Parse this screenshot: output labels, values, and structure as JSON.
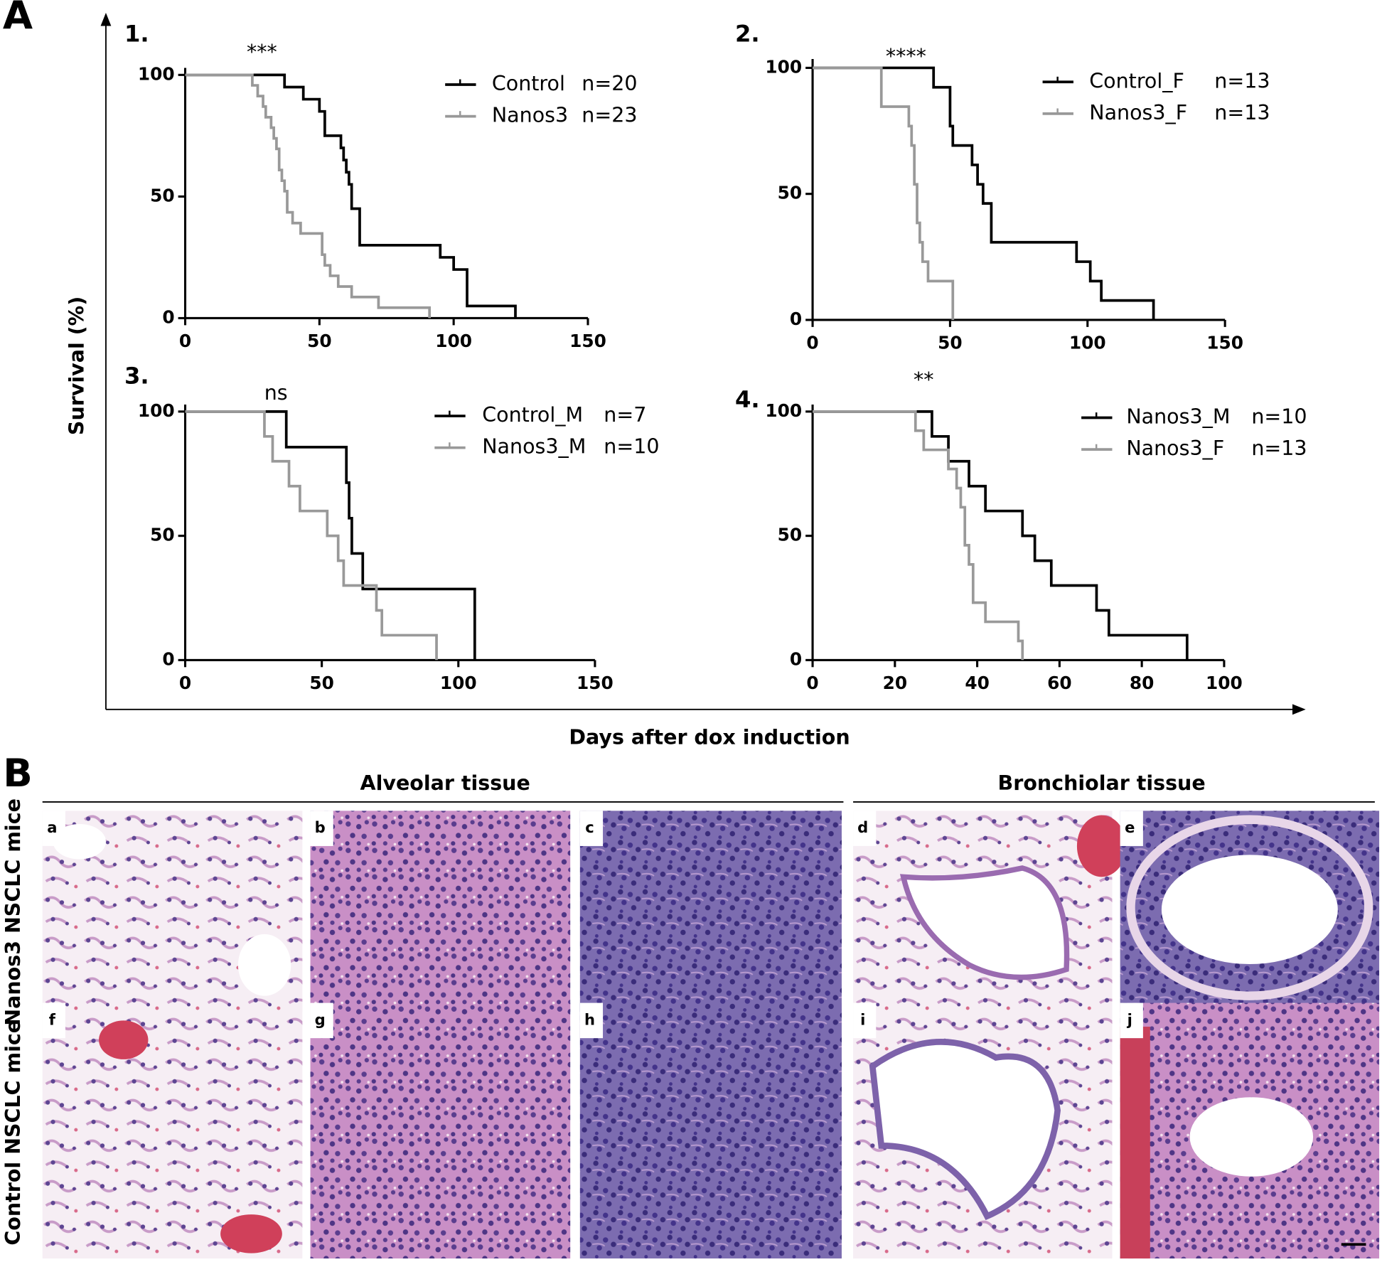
{
  "figure": {
    "panel_a": "A",
    "panel_b": "B",
    "y_label": "Survival (%)",
    "x_label": "Days after dox induction",
    "tissue_headers": [
      "Alveolar tissue",
      "Bronchiolar tissue"
    ],
    "row_labels": [
      "Nanos3 NSCLC mice",
      "Control NSCLC mice"
    ],
    "image_labels": [
      "a",
      "b",
      "c",
      "d",
      "e",
      "f",
      "g",
      "h",
      "i",
      "j"
    ]
  },
  "chart_data": [
    {
      "type": "step",
      "title": "1.",
      "annotation": "***",
      "xlim": [
        0,
        150
      ],
      "xticks": [
        0,
        50,
        100,
        150
      ],
      "ylim": [
        0,
        100
      ],
      "yticks": [
        0,
        50,
        100
      ],
      "series": [
        {
          "name": "Control",
          "n_label": "n=20",
          "color": "#000000",
          "x": [
            0,
            37,
            44,
            50,
            52,
            58,
            59,
            60,
            61,
            62,
            65,
            95,
            100,
            105,
            123
          ],
          "values": [
            100,
            95,
            90,
            85,
            75,
            70,
            65,
            60,
            55,
            45,
            30,
            25,
            20,
            5,
            0
          ]
        },
        {
          "name": "Nanos3",
          "n_label": "n=23",
          "color": "#999999",
          "x": [
            0,
            25,
            27,
            29,
            30,
            32,
            33,
            34,
            35,
            36,
            37,
            38,
            40,
            43,
            51,
            52,
            54,
            57,
            62,
            72,
            91
          ],
          "values": [
            100,
            95.7,
            91.3,
            87,
            82.6,
            78.3,
            73.9,
            69.6,
            60.9,
            56.5,
            52.2,
            43.5,
            39.1,
            34.8,
            26.1,
            21.7,
            17.4,
            13,
            8.7,
            4.3,
            0
          ]
        }
      ]
    },
    {
      "type": "step",
      "title": "2.",
      "annotation": "****",
      "xlim": [
        0,
        150
      ],
      "xticks": [
        0,
        50,
        100,
        150
      ],
      "ylim": [
        0,
        100
      ],
      "yticks": [
        0,
        50,
        100
      ],
      "series": [
        {
          "name": "Control_F",
          "n_label": "n=13",
          "color": "#000000",
          "x": [
            0,
            44,
            50,
            51,
            58,
            60,
            62,
            65,
            96,
            101,
            105,
            124
          ],
          "values": [
            100,
            92.3,
            76.9,
            69.2,
            61.5,
            53.8,
            46.2,
            30.8,
            23.1,
            15.4,
            7.7,
            0
          ]
        },
        {
          "name": "Nanos3_F",
          "n_label": "n=13",
          "color": "#999999",
          "x": [
            0,
            25,
            35,
            36,
            37,
            38,
            39,
            40,
            42,
            51
          ],
          "values": [
            100,
            84.6,
            76.9,
            69.2,
            53.8,
            38.5,
            30.8,
            23.1,
            15.4,
            0
          ]
        }
      ]
    },
    {
      "type": "step",
      "title": "3.",
      "annotation": "ns",
      "xlim": [
        0,
        150
      ],
      "xticks": [
        0,
        50,
        100,
        150
      ],
      "ylim": [
        0,
        100
      ],
      "yticks": [
        0,
        50,
        100
      ],
      "series": [
        {
          "name": "Control_M",
          "n_label": "n=7",
          "color": "#000000",
          "x": [
            0,
            37,
            59,
            60,
            61,
            65,
            106
          ],
          "values": [
            100,
            85.7,
            71.4,
            57.1,
            42.9,
            28.6,
            0
          ]
        },
        {
          "name": "Nanos3_M",
          "n_label": "n=10",
          "color": "#999999",
          "x": [
            0,
            29,
            32,
            38,
            42,
            52,
            56,
            58,
            70,
            72,
            92
          ],
          "values": [
            100,
            90,
            80,
            70,
            60,
            50,
            40,
            30,
            20,
            10,
            0
          ]
        }
      ]
    },
    {
      "type": "step",
      "title": "4.",
      "annotation": "**",
      "xlim": [
        0,
        100
      ],
      "xticks": [
        0,
        20,
        40,
        60,
        80,
        100
      ],
      "ylim": [
        0,
        100
      ],
      "yticks": [
        0,
        50,
        100
      ],
      "series": [
        {
          "name": "Nanos3_M",
          "n_label": "n=10",
          "color": "#000000",
          "x": [
            0,
            29,
            33,
            38,
            42,
            51,
            54,
            58,
            69,
            72,
            91
          ],
          "values": [
            100,
            90,
            80,
            70,
            60,
            50,
            40,
            30,
            20,
            10,
            0
          ]
        },
        {
          "name": "Nanos3_F",
          "n_label": "n=13",
          "color": "#999999",
          "x": [
            0,
            25,
            27,
            33,
            35,
            36,
            37,
            38,
            39,
            42,
            50,
            51
          ],
          "values": [
            100,
            92.3,
            84.6,
            76.9,
            69.2,
            61.5,
            46.2,
            38.5,
            23.1,
            15.4,
            7.7,
            0
          ]
        }
      ]
    }
  ]
}
